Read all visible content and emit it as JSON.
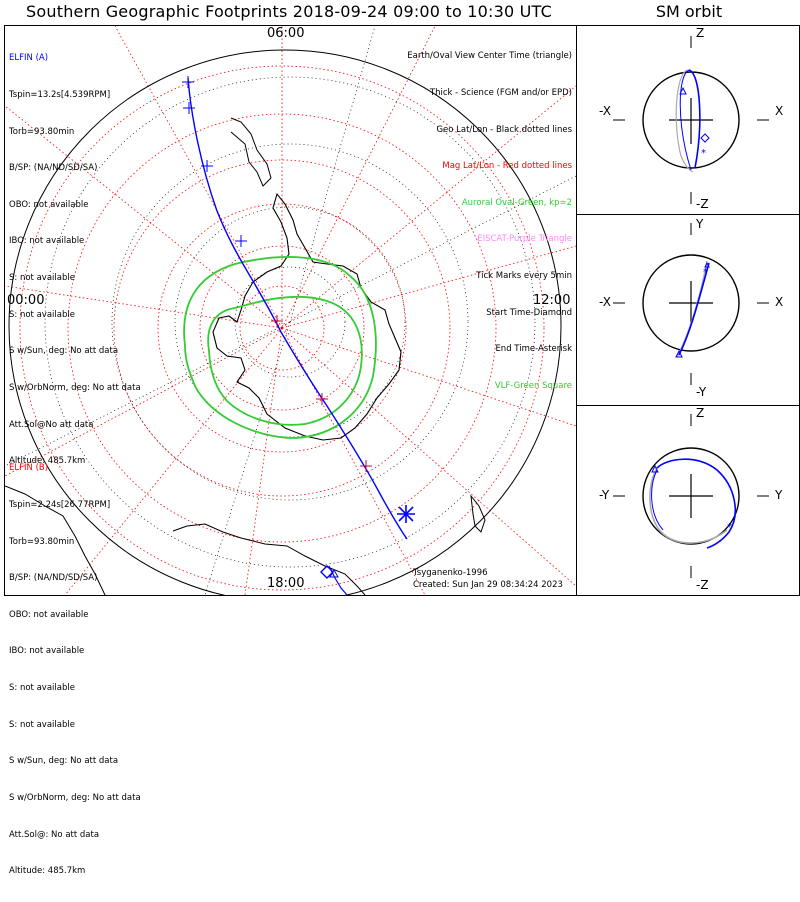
{
  "title": "Southern Geographic Footprints 2018-09-24 09:00 to 10:30 UTC",
  "sm_title": "SM orbit",
  "map": {
    "time_labels": {
      "top": "06:00",
      "left": "00:00",
      "right": "12:00",
      "bottom": "18:00"
    },
    "legend": [
      {
        "text": "Earth/Oval View Center Time (triangle)",
        "color": "#000000"
      },
      {
        "text": "Thick - Science (FGM and/or EPD)",
        "color": "#000000"
      },
      {
        "text": "Geo Lat/Lon - Black dotted lines",
        "color": "#000000"
      },
      {
        "text": "Mag Lat/Lon - Red dotted lines",
        "color": "#ff0000"
      },
      {
        "text": "Auroral Oval-Green, kp=2",
        "color": "#33cc33"
      },
      {
        "text": "EISCAT-Purple Triangle",
        "color": "#ff88ff"
      },
      {
        "text": "Tick Marks every 5min",
        "color": "#000000"
      },
      {
        "text": "Start Time-Diamond",
        "color": "#000000"
      },
      {
        "text": "End Time-Asterisk",
        "color": "#000000"
      },
      {
        "text": "VLF-Green Square",
        "color": "#33cc33"
      }
    ],
    "elfin_a": {
      "name": "ELFIN (A)",
      "color": "#0000ff",
      "lines": [
        "Tspin=13.2s[4.539RPM]",
        "Torb=93.80min",
        "B/SP: (NA/ND/SD/SA)",
        "OBO: not available",
        "IBO: not available",
        "S: not available",
        "S: not available",
        "S w/Sun, deg: No att data",
        "S w/OrbNorm, deg: No att data",
        "Att.Sol@No att data",
        "Altitude: 485.7km"
      ]
    },
    "elfin_b": {
      "name": "ELFIN (B)",
      "color": "#ff0000",
      "lines": [
        "Tspin=2.24s[26.77RPM]",
        "Torb=93.80min",
        "B/SP: (NA/ND/SD/SA)",
        "OBO: not available",
        "IBO: not available",
        "S: not available",
        "S: not available",
        "S w/Sun, deg: No att data",
        "S w/OrbNorm, deg: No att data",
        "Att.Sol@: No att data",
        "Altitude: 485.7km"
      ]
    },
    "model": "Tsyganenko-1996",
    "created": "Created: Sun Jan 29 08:34:24 2023"
  },
  "sm_panels": [
    {
      "name": "xz",
      "left": "-X",
      "right": "X",
      "top": "Z",
      "bottom": "-Z"
    },
    {
      "name": "xy",
      "left": "-X",
      "right": "X",
      "top": "Y",
      "bottom": "-Y"
    },
    {
      "name": "yz",
      "left": "-Y",
      "right": "Y",
      "top": "Z",
      "bottom": "-Z"
    }
  ]
}
